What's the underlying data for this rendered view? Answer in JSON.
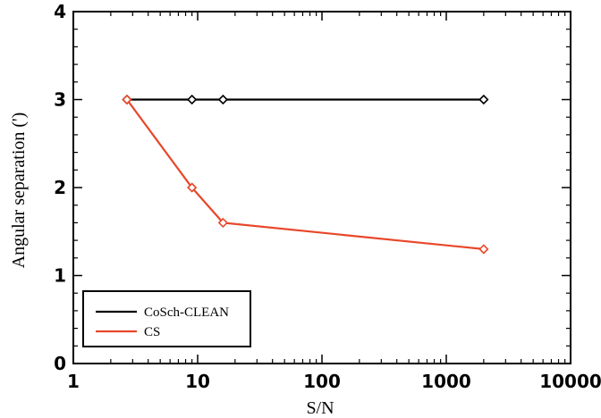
{
  "chart_data": {
    "type": "line",
    "title": "",
    "xlabel": "S/N",
    "ylabel": "Angular separation (')",
    "xscale": "log",
    "xlim": [
      1,
      10000
    ],
    "ylim": [
      0,
      4
    ],
    "x_ticks": [
      {
        "value": 1,
        "label": "1"
      },
      {
        "value": 10,
        "label": "10"
      },
      {
        "value": 100,
        "label": "100"
      },
      {
        "value": 1000,
        "label": "1000"
      },
      {
        "value": 10000,
        "label": "10000"
      }
    ],
    "y_ticks": [
      {
        "value": 0,
        "label": "0"
      },
      {
        "value": 1,
        "label": "1"
      },
      {
        "value": 2,
        "label": "2"
      },
      {
        "value": 3,
        "label": "3"
      },
      {
        "value": 4,
        "label": "4"
      }
    ],
    "grid": false,
    "legend_position": "bottom-left",
    "marker": "diamond",
    "series": [
      {
        "name": "CoSch-CLEAN",
        "color": "#000000",
        "x": [
          2.7,
          9,
          16,
          2000
        ],
        "y": [
          3,
          3,
          3,
          3
        ]
      },
      {
        "name": "CS",
        "color": "#e8472a",
        "x": [
          2.7,
          9,
          16,
          2000
        ],
        "y": [
          3,
          2,
          1.6,
          1.3
        ]
      }
    ]
  }
}
